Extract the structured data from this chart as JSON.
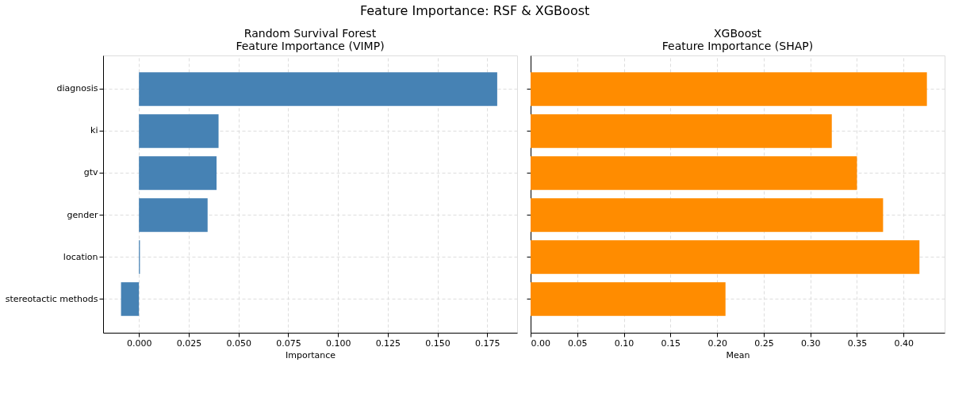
{
  "chart_data": [
    {
      "type": "bar",
      "title": "Feature Importance: RSF & XGBoost",
      "subtitle": [
        "Random Survival Forest",
        "Feature Importance (VIMP)"
      ],
      "xlabel": "Importance",
      "orientation": "horizontal",
      "categories": [
        "diagnosis",
        "ki",
        "gtv",
        "gender",
        "location",
        "stereotactic methods"
      ],
      "series": [
        {
          "color": "#4682b4",
          "values": [
            0.18,
            0.04,
            0.039,
            0.0345,
            0.0005,
            -0.009
          ]
        }
      ],
      "xlim": [
        -0.018,
        0.19
      ],
      "xticks": [
        {
          "value": 0,
          "label": "0.000"
        },
        0.025,
        {
          "value": 0.05,
          "label": "0.050"
        },
        0.075,
        {
          "value": 0.1,
          "label": "0.100"
        },
        0.125,
        {
          "value": 0.15,
          "label": "0.150"
        },
        0.175
      ],
      "grid": true
    },
    {
      "type": "bar",
      "subtitle": [
        "XGBoost",
        "Feature Importance (SHAP)"
      ],
      "xlabel": "Mean",
      "orientation": "horizontal",
      "categories": [
        "diagnosis",
        "ki",
        "gtv",
        "gender",
        "location",
        "stereotactic methods"
      ],
      "series": [
        {
          "color": "#ff8c00",
          "values": [
            0.425,
            0.323,
            0.35,
            0.378,
            0.417,
            0.209
          ]
        }
      ],
      "xlim": [
        0,
        0.444
      ],
      "xticks": [
        {
          "value": 0,
          "label": "0.00"
        },
        0.05,
        {
          "value": 0.1,
          "label": "0.10"
        },
        0.15,
        {
          "value": 0.2,
          "label": "0.20"
        },
        0.25,
        {
          "value": 0.3,
          "label": "0.30"
        },
        0.35,
        {
          "value": 0.4,
          "label": "0.40"
        }
      ],
      "grid": true,
      "tick_labels": "x"
    }
  ]
}
